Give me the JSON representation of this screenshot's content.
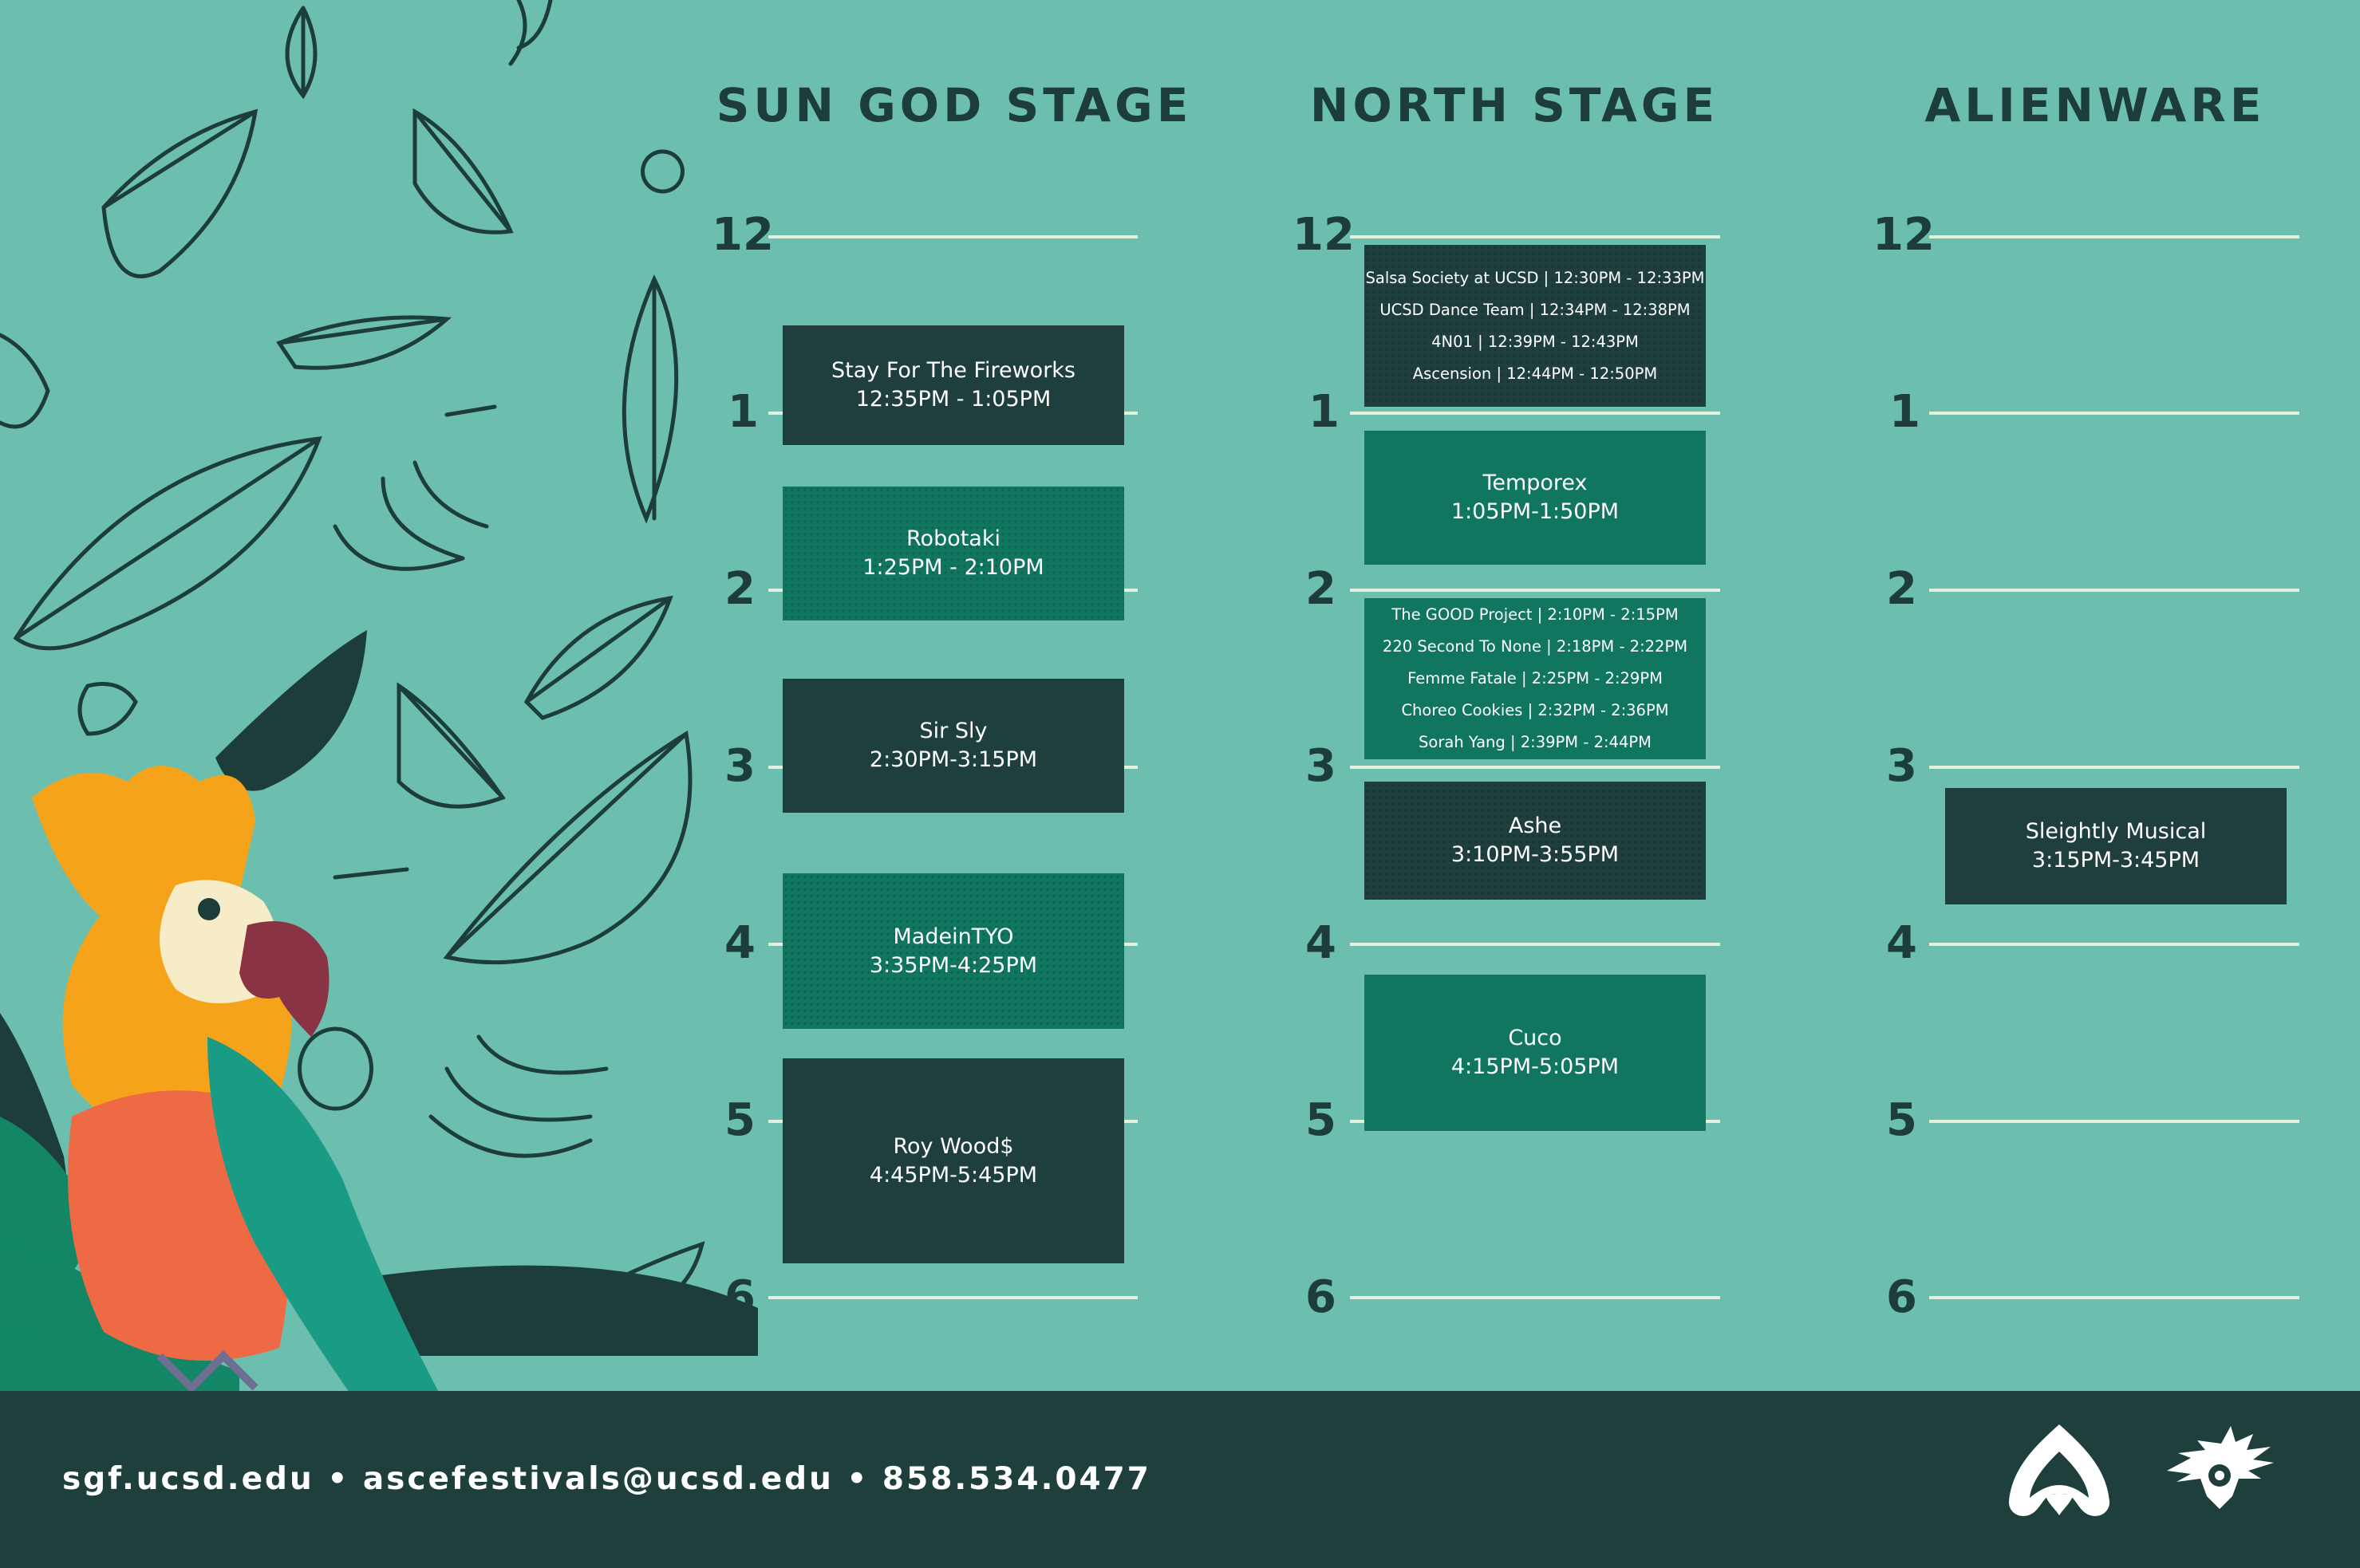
{
  "stages": [
    {
      "title": "SUN GOD STAGE",
      "hours": [
        "12",
        "1",
        "2",
        "3",
        "4",
        "5",
        "6"
      ],
      "slots": [
        {
          "name": "Stay For The Fireworks",
          "time": "12:35PM - 1:05PM"
        },
        {
          "name": "Robotaki",
          "time": "1:25PM - 2:10PM"
        },
        {
          "name": "Sir Sly",
          "time": "2:30PM-3:15PM"
        },
        {
          "name": "MadeinTYO",
          "time": "3:35PM-4:25PM"
        },
        {
          "name": "Roy Wood$",
          "time": "4:45PM-5:45PM"
        }
      ]
    },
    {
      "title": "NORTH STAGE",
      "hours": [
        "12",
        "1",
        "2",
        "3",
        "4",
        "5",
        "6"
      ],
      "group_one": [
        "Salsa Society at UCSD | 12:30PM - 12:33PM",
        "UCSD Dance Team | 12:34PM - 12:38PM",
        "4N01 | 12:39PM - 12:43PM",
        "Ascension | 12:44PM - 12:50PM"
      ],
      "temporex": {
        "name": "Temporex",
        "time": "1:05PM-1:50PM"
      },
      "group_two": [
        "The GOOD Project | 2:10PM - 2:15PM",
        "220 Second To None | 2:18PM - 2:22PM",
        "Femme Fatale | 2:25PM - 2:29PM",
        "Choreo Cookies | 2:32PM - 2:36PM",
        "Sorah Yang | 2:39PM - 2:44PM"
      ],
      "ashe": {
        "name": "Ashe",
        "time": "3:10PM-3:55PM"
      },
      "cuco": {
        "name": "Cuco",
        "time": "4:15PM-5:05PM"
      }
    },
    {
      "title": "ALIENWARE",
      "hours": [
        "12",
        "1",
        "2",
        "3",
        "4",
        "5",
        "6"
      ],
      "slots": [
        {
          "name": "Sleightly Musical",
          "time": "3:15PM-3:45PM"
        }
      ]
    }
  ],
  "footer": {
    "contact": "sgf.ucsd.edu • ascefestivals@ucsd.edu • 858.534.0477",
    "logos": [
      "asce-logo-icon",
      "sun-god-festival-logo-icon"
    ]
  },
  "colors": {
    "background": "#6cbfae",
    "dark": "#1e3f3d",
    "green": "#10765f",
    "line": "#e4f1df"
  }
}
